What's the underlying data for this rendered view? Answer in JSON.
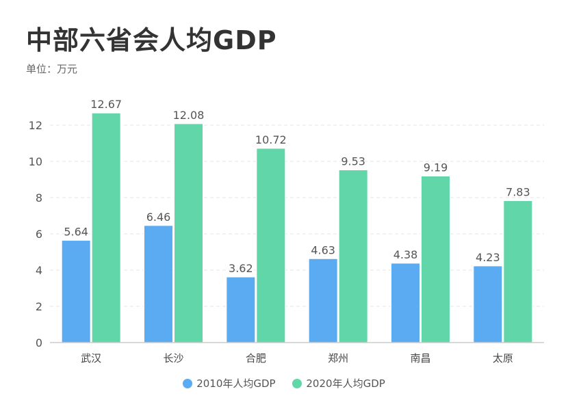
{
  "title": "中部六省会人均GDP",
  "subtitle": "单位：万元",
  "colors": {
    "series_2010": "#5aabf2",
    "series_2020": "#61d6a8"
  },
  "chart_data": {
    "type": "bar",
    "categories": [
      "武汉",
      "长沙",
      "合肥",
      "郑州",
      "南昌",
      "太原"
    ],
    "series": [
      {
        "name": "2010年人均GDP",
        "values": [
          5.64,
          6.46,
          3.62,
          4.63,
          4.38,
          4.23
        ]
      },
      {
        "name": "2020年人均GDP",
        "values": [
          12.67,
          12.08,
          10.72,
          9.53,
          9.19,
          7.83
        ]
      }
    ],
    "yticks": [
      0,
      2,
      4,
      6,
      8,
      10,
      12
    ],
    "ylim": [
      0,
      14
    ],
    "xlabel": "",
    "ylabel": "",
    "grid": true,
    "legend": "bottom"
  }
}
